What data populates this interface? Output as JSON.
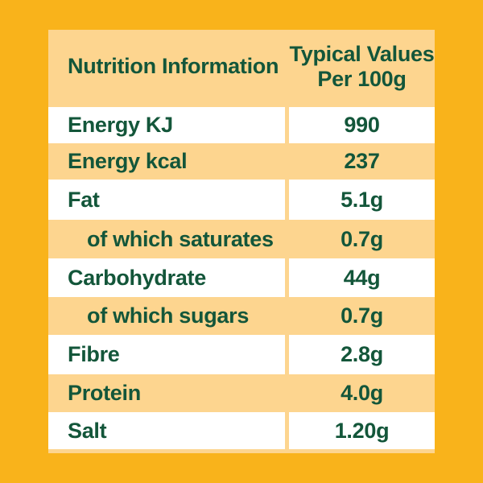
{
  "header": {
    "title": "Nutrition Information",
    "values_line1": "Typical Values",
    "values_line2": "Per 100g"
  },
  "rows": [
    {
      "label": "Energy KJ",
      "value": "990"
    },
    {
      "label": "Energy kcal",
      "value": "237"
    },
    {
      "label": "Fat",
      "value": "5.1g"
    },
    {
      "label": "of which saturates",
      "value": "0.7g"
    },
    {
      "label": "Carbohydrate",
      "value": "44g"
    },
    {
      "label": "of which sugars",
      "value": "0.7g"
    },
    {
      "label": "Fibre",
      "value": "2.8g"
    },
    {
      "label": "Protein",
      "value": "4.0g"
    },
    {
      "label": "Salt",
      "value": "1.20g"
    }
  ],
  "colors": {
    "background": "#f9b31b",
    "panel": "#fdd58f",
    "row_light": "#ffffff",
    "text": "#13563a"
  }
}
